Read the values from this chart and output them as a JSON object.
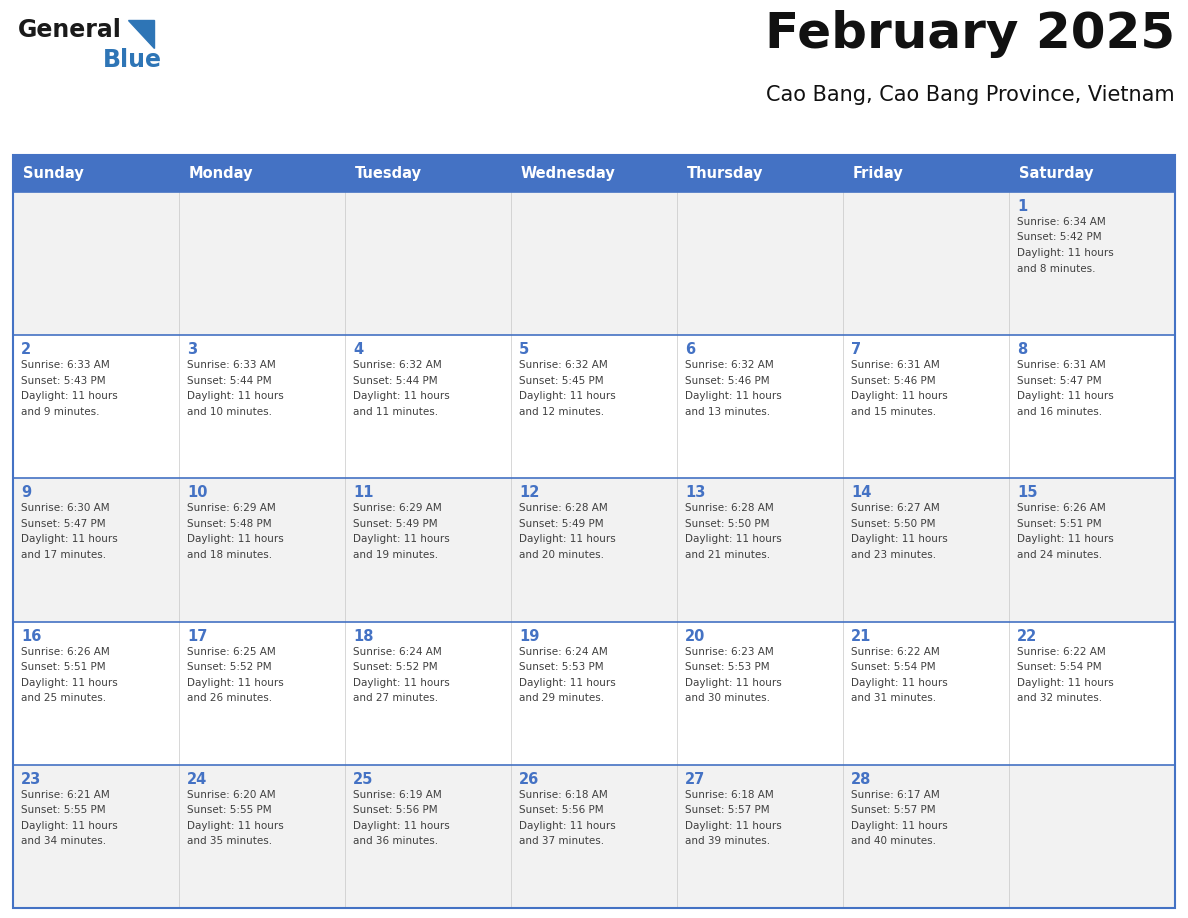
{
  "title": "February 2025",
  "subtitle": "Cao Bang, Cao Bang Province, Vietnam",
  "header_bg": "#4472C4",
  "header_text_color": "#FFFFFF",
  "day_names": [
    "Sunday",
    "Monday",
    "Tuesday",
    "Wednesday",
    "Thursday",
    "Friday",
    "Saturday"
  ],
  "row_bg_colors": [
    "#F2F2F2",
    "#FFFFFF",
    "#F2F2F2",
    "#FFFFFF",
    "#F2F2F2"
  ],
  "cell_border_color": "#4472C4",
  "day_number_color": "#4472C4",
  "info_text_color": "#404040",
  "logo_general_color": "#1A1A1A",
  "logo_blue_color": "#2E75B6",
  "calendar_data": [
    [
      null,
      null,
      null,
      null,
      null,
      null,
      {
        "day": 1,
        "sunrise": "6:34 AM",
        "sunset": "5:42 PM",
        "daylight": "11 hours and 8 minutes."
      }
    ],
    [
      {
        "day": 2,
        "sunrise": "6:33 AM",
        "sunset": "5:43 PM",
        "daylight": "11 hours and 9 minutes."
      },
      {
        "day": 3,
        "sunrise": "6:33 AM",
        "sunset": "5:44 PM",
        "daylight": "11 hours and 10 minutes."
      },
      {
        "day": 4,
        "sunrise": "6:32 AM",
        "sunset": "5:44 PM",
        "daylight": "11 hours and 11 minutes."
      },
      {
        "day": 5,
        "sunrise": "6:32 AM",
        "sunset": "5:45 PM",
        "daylight": "11 hours and 12 minutes."
      },
      {
        "day": 6,
        "sunrise": "6:32 AM",
        "sunset": "5:46 PM",
        "daylight": "11 hours and 13 minutes."
      },
      {
        "day": 7,
        "sunrise": "6:31 AM",
        "sunset": "5:46 PM",
        "daylight": "11 hours and 15 minutes."
      },
      {
        "day": 8,
        "sunrise": "6:31 AM",
        "sunset": "5:47 PM",
        "daylight": "11 hours and 16 minutes."
      }
    ],
    [
      {
        "day": 9,
        "sunrise": "6:30 AM",
        "sunset": "5:47 PM",
        "daylight": "11 hours and 17 minutes."
      },
      {
        "day": 10,
        "sunrise": "6:29 AM",
        "sunset": "5:48 PM",
        "daylight": "11 hours and 18 minutes."
      },
      {
        "day": 11,
        "sunrise": "6:29 AM",
        "sunset": "5:49 PM",
        "daylight": "11 hours and 19 minutes."
      },
      {
        "day": 12,
        "sunrise": "6:28 AM",
        "sunset": "5:49 PM",
        "daylight": "11 hours and 20 minutes."
      },
      {
        "day": 13,
        "sunrise": "6:28 AM",
        "sunset": "5:50 PM",
        "daylight": "11 hours and 21 minutes."
      },
      {
        "day": 14,
        "sunrise": "6:27 AM",
        "sunset": "5:50 PM",
        "daylight": "11 hours and 23 minutes."
      },
      {
        "day": 15,
        "sunrise": "6:26 AM",
        "sunset": "5:51 PM",
        "daylight": "11 hours and 24 minutes."
      }
    ],
    [
      {
        "day": 16,
        "sunrise": "6:26 AM",
        "sunset": "5:51 PM",
        "daylight": "11 hours and 25 minutes."
      },
      {
        "day": 17,
        "sunrise": "6:25 AM",
        "sunset": "5:52 PM",
        "daylight": "11 hours and 26 minutes."
      },
      {
        "day": 18,
        "sunrise": "6:24 AM",
        "sunset": "5:52 PM",
        "daylight": "11 hours and 27 minutes."
      },
      {
        "day": 19,
        "sunrise": "6:24 AM",
        "sunset": "5:53 PM",
        "daylight": "11 hours and 29 minutes."
      },
      {
        "day": 20,
        "sunrise": "6:23 AM",
        "sunset": "5:53 PM",
        "daylight": "11 hours and 30 minutes."
      },
      {
        "day": 21,
        "sunrise": "6:22 AM",
        "sunset": "5:54 PM",
        "daylight": "11 hours and 31 minutes."
      },
      {
        "day": 22,
        "sunrise": "6:22 AM",
        "sunset": "5:54 PM",
        "daylight": "11 hours and 32 minutes."
      }
    ],
    [
      {
        "day": 23,
        "sunrise": "6:21 AM",
        "sunset": "5:55 PM",
        "daylight": "11 hours and 34 minutes."
      },
      {
        "day": 24,
        "sunrise": "6:20 AM",
        "sunset": "5:55 PM",
        "daylight": "11 hours and 35 minutes."
      },
      {
        "day": 25,
        "sunrise": "6:19 AM",
        "sunset": "5:56 PM",
        "daylight": "11 hours and 36 minutes."
      },
      {
        "day": 26,
        "sunrise": "6:18 AM",
        "sunset": "5:56 PM",
        "daylight": "11 hours and 37 minutes."
      },
      {
        "day": 27,
        "sunrise": "6:18 AM",
        "sunset": "5:57 PM",
        "daylight": "11 hours and 39 minutes."
      },
      {
        "day": 28,
        "sunrise": "6:17 AM",
        "sunset": "5:57 PM",
        "daylight": "11 hours and 40 minutes."
      },
      null
    ]
  ]
}
